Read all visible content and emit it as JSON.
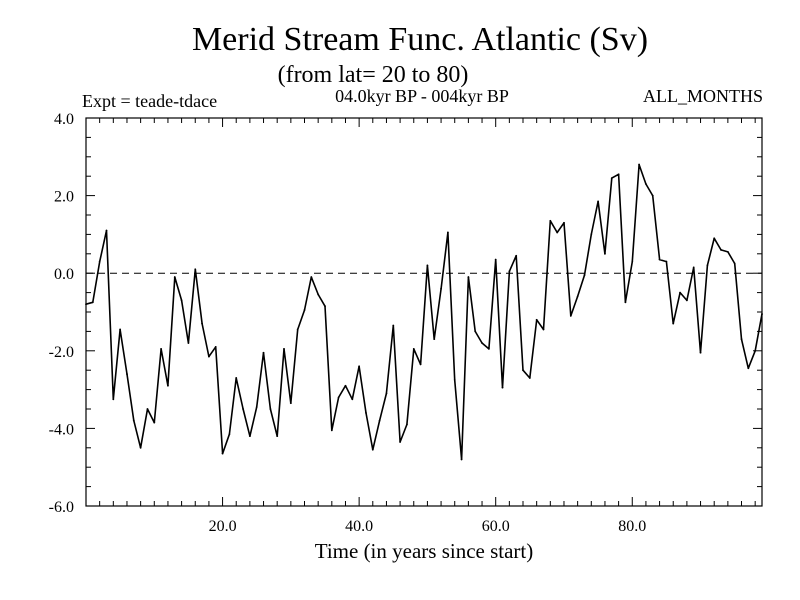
{
  "chart_data": {
    "type": "line",
    "title": "Merid Stream Func. Atlantic (Sv)",
    "subtitle": "(from lat= 20 to 80)",
    "left_label": "Expt = teade-tdace",
    "center_label": "04.0kyr BP - 004kyr BP",
    "right_label": "ALL_MONTHS",
    "xlabel": "Time (in years since start)",
    "ylabel": "",
    "xlim": [
      0,
      99
    ],
    "ylim": [
      -6,
      4
    ],
    "x_ticks": [
      20,
      40,
      60,
      80
    ],
    "x_tick_labels": [
      "20.0",
      "40.0",
      "60.0",
      "80.0"
    ],
    "y_ticks": [
      -6,
      -4,
      -2,
      0,
      2,
      4
    ],
    "y_tick_labels": [
      "-6.0",
      "-4.0",
      "-2.0",
      "0.0",
      "2.0",
      "4.0"
    ],
    "reference_line": 0,
    "series": [
      {
        "name": "Merid Stream Func.",
        "x": [
          0,
          1,
          2,
          3,
          4,
          5,
          6,
          7,
          8,
          9,
          10,
          11,
          12,
          13,
          14,
          15,
          16,
          17,
          18,
          19,
          20,
          21,
          22,
          23,
          24,
          25,
          26,
          27,
          28,
          29,
          30,
          31,
          32,
          33,
          34,
          35,
          36,
          37,
          38,
          39,
          40,
          41,
          42,
          43,
          44,
          45,
          46,
          47,
          48,
          49,
          50,
          51,
          52,
          53,
          54,
          55,
          56,
          57,
          58,
          59,
          60,
          61,
          62,
          63,
          64,
          65,
          66,
          67,
          68,
          69,
          70,
          71,
          72,
          73,
          74,
          75,
          76,
          77,
          78,
          79,
          80,
          81,
          82,
          83,
          84,
          85,
          86,
          87,
          88,
          89,
          90,
          91,
          92,
          93,
          94,
          95,
          96,
          97,
          98,
          99
        ],
        "values": [
          -0.8,
          -0.75,
          0.3,
          1.1,
          -3.25,
          -1.45,
          -2.6,
          -3.8,
          -4.5,
          -3.5,
          -3.85,
          -1.95,
          -2.9,
          -0.1,
          -0.7,
          -1.8,
          0.1,
          -1.3,
          -2.15,
          -1.9,
          -4.65,
          -4.15,
          -2.7,
          -3.5,
          -4.2,
          -3.45,
          -2.05,
          -3.5,
          -4.2,
          -1.95,
          -3.35,
          -1.45,
          -0.95,
          -0.1,
          -0.55,
          -0.85,
          -4.05,
          -3.2,
          -2.9,
          -3.25,
          -2.4,
          -3.6,
          -4.55,
          -3.8,
          -3.1,
          -1.35,
          -4.35,
          -3.9,
          -1.95,
          -2.35,
          0.2,
          -1.7,
          -0.4,
          1.05,
          -2.75,
          -4.8,
          -0.1,
          -1.5,
          -1.8,
          -1.95,
          0.35,
          -2.95,
          0.05,
          0.45,
          -2.5,
          -2.7,
          -1.2,
          -1.45,
          1.35,
          1.05,
          1.3,
          -1.1,
          -0.6,
          -0.05,
          1.0,
          1.85,
          0.5,
          2.45,
          2.55,
          -0.75,
          0.3,
          2.8,
          2.3,
          2.0,
          0.35,
          0.3,
          -1.3,
          -0.5,
          -0.7,
          0.15,
          -2.05,
          0.2,
          0.9,
          0.6,
          0.55,
          0.25,
          -1.7,
          -2.45,
          -2.0,
          -1.05
        ]
      }
    ]
  }
}
